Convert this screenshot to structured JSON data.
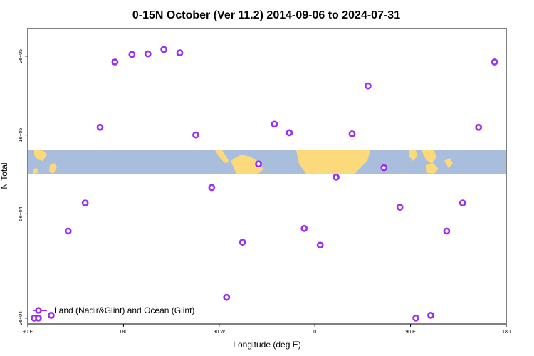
{
  "chart_data": {
    "type": "scatter",
    "title": "0-15N October (Ver 11.2)   2014-09-06 to 2024-07-31",
    "xlabel": "Longitude (deg E)",
    "ylabel": "N Total",
    "x_ticks": [
      {
        "value": 90,
        "label": "90 E"
      },
      {
        "value": 180,
        "label": "180"
      },
      {
        "value": 270,
        "label": "90 W"
      },
      {
        "value": 360,
        "label": "0"
      },
      {
        "value": 450,
        "label": "90 E"
      },
      {
        "value": 540,
        "label": "180"
      }
    ],
    "y_ticks": [
      {
        "value": 20000,
        "label": "2e+04"
      },
      {
        "value": 50000,
        "label": "5e+04"
      },
      {
        "value": 100000,
        "label": "1e+05"
      },
      {
        "value": 200000,
        "label": "2e+05"
      }
    ],
    "xlim": [
      90,
      540
    ],
    "ylim": [
      19000,
      255000
    ],
    "y_scale": "log",
    "grid": false,
    "legend_position": "bottom-left",
    "colors": {
      "series": "#9a2ef2",
      "land": "#fcd97b",
      "ocean": "#a9bddd"
    },
    "series": [
      {
        "name": "Land (Nadir&Glint) and Ocean (Glint)",
        "x": [
          96,
          100,
          112,
          128,
          144,
          158,
          172,
          188,
          203,
          218,
          233,
          248,
          263,
          277,
          292,
          307,
          322,
          336,
          350,
          365,
          380,
          395,
          410,
          425,
          440,
          455,
          469,
          484,
          499,
          514,
          529
        ],
        "y": [
          20000,
          20000,
          20500,
          43000,
          55000,
          107000,
          190000,
          203000,
          204000,
          212000,
          206000,
          100000,
          63000,
          24000,
          39000,
          77500,
          110000,
          102000,
          44000,
          38000,
          69000,
          101000,
          154000,
          75000,
          53000,
          20000,
          20500,
          43000,
          55000,
          107000,
          190000
        ]
      }
    ]
  }
}
